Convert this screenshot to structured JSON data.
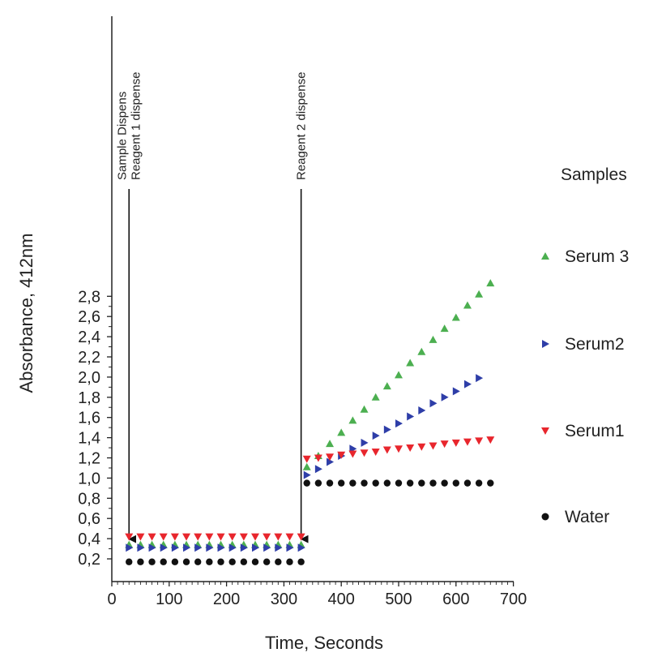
{
  "chart_data": {
    "type": "scatter",
    "xlabel": "Time, Seconds",
    "ylabel": "Absorbance, 412nm",
    "xlim": [
      0,
      700
    ],
    "ylim": [
      0.1,
      2.9
    ],
    "x_ticks": [
      0,
      100,
      200,
      300,
      400,
      500,
      600,
      700
    ],
    "x_tick_labels": [
      "0",
      "100",
      "200",
      "300",
      "400",
      "500",
      "600",
      "700"
    ],
    "y_ticks": [
      0.2,
      0.4,
      0.6,
      0.8,
      1.0,
      1.2,
      1.4,
      1.6,
      1.8,
      2.0,
      2.2,
      2.4,
      2.6,
      2.8
    ],
    "y_tick_labels": [
      "0,2",
      "0,4",
      "0,6",
      "0,8",
      "1,0",
      "1,2",
      "1,4",
      "1,6",
      "1,8",
      "2,0",
      "2,2",
      "2,4",
      "2,6",
      "2,8"
    ],
    "grid": false,
    "legend": {
      "title": "Samples",
      "position": "right"
    },
    "series": [
      {
        "name": "Serum 3",
        "marker": "triangle-up",
        "color": "#4caf50",
        "x": [
          30,
          50,
          70,
          90,
          110,
          130,
          150,
          170,
          190,
          210,
          230,
          250,
          270,
          290,
          310,
          330,
          340,
          360,
          380,
          400,
          420,
          440,
          460,
          480,
          500,
          520,
          540,
          560,
          580,
          600,
          620,
          640,
          660
        ],
        "y": [
          0.34,
          0.34,
          0.34,
          0.34,
          0.34,
          0.34,
          0.34,
          0.34,
          0.34,
          0.34,
          0.34,
          0.34,
          0.34,
          0.34,
          0.34,
          0.34,
          1.11,
          1.22,
          1.34,
          1.45,
          1.57,
          1.68,
          1.8,
          1.91,
          2.02,
          2.14,
          2.25,
          2.37,
          2.48,
          2.59,
          2.71,
          2.82,
          2.93
        ]
      },
      {
        "name": "Serum2",
        "marker": "triangle-right",
        "color": "#2e3ea8",
        "x": [
          30,
          50,
          70,
          90,
          110,
          130,
          150,
          170,
          190,
          210,
          230,
          250,
          270,
          290,
          310,
          330,
          340,
          360,
          380,
          400,
          420,
          440,
          460,
          480,
          500,
          520,
          540,
          560,
          580,
          600,
          620,
          640
        ],
        "y": [
          0.31,
          0.31,
          0.31,
          0.31,
          0.31,
          0.31,
          0.31,
          0.31,
          0.31,
          0.31,
          0.31,
          0.31,
          0.31,
          0.31,
          0.31,
          0.31,
          1.03,
          1.09,
          1.16,
          1.22,
          1.29,
          1.35,
          1.42,
          1.48,
          1.54,
          1.61,
          1.67,
          1.74,
          1.8,
          1.86,
          1.93,
          1.99
        ]
      },
      {
        "name": "Serum1",
        "marker": "triangle-down",
        "color": "#e8262d",
        "x": [
          30,
          50,
          70,
          90,
          110,
          130,
          150,
          170,
          190,
          210,
          230,
          250,
          270,
          290,
          310,
          330,
          340,
          360,
          380,
          400,
          420,
          440,
          460,
          480,
          500,
          520,
          540,
          560,
          580,
          600,
          620,
          640,
          660
        ],
        "y": [
          0.42,
          0.42,
          0.42,
          0.42,
          0.42,
          0.42,
          0.42,
          0.42,
          0.42,
          0.42,
          0.42,
          0.42,
          0.42,
          0.42,
          0.42,
          0.42,
          1.19,
          1.2,
          1.21,
          1.23,
          1.24,
          1.25,
          1.26,
          1.28,
          1.29,
          1.3,
          1.31,
          1.32,
          1.34,
          1.35,
          1.36,
          1.37,
          1.38
        ]
      },
      {
        "name": "Water",
        "marker": "circle",
        "color": "#111111",
        "x": [
          30,
          50,
          70,
          90,
          110,
          130,
          150,
          170,
          190,
          210,
          230,
          250,
          270,
          290,
          310,
          330,
          340,
          360,
          380,
          400,
          420,
          440,
          460,
          480,
          500,
          520,
          540,
          560,
          580,
          600,
          620,
          640,
          660
        ],
        "y": [
          0.17,
          0.17,
          0.17,
          0.17,
          0.17,
          0.17,
          0.17,
          0.17,
          0.17,
          0.17,
          0.17,
          0.17,
          0.17,
          0.17,
          0.17,
          0.17,
          0.95,
          0.95,
          0.95,
          0.95,
          0.95,
          0.95,
          0.95,
          0.95,
          0.95,
          0.95,
          0.95,
          0.95,
          0.95,
          0.95,
          0.95,
          0.95,
          0.95
        ]
      }
    ],
    "annotations": [
      {
        "lines": [
          "Sample Dispens",
          "Reagent 1 dispense"
        ],
        "x": 30,
        "arrow_to_y": 0.46
      },
      {
        "lines": [
          "Reagent 2 dispense"
        ],
        "x": 330,
        "arrow_to_y": 0.46
      }
    ]
  }
}
